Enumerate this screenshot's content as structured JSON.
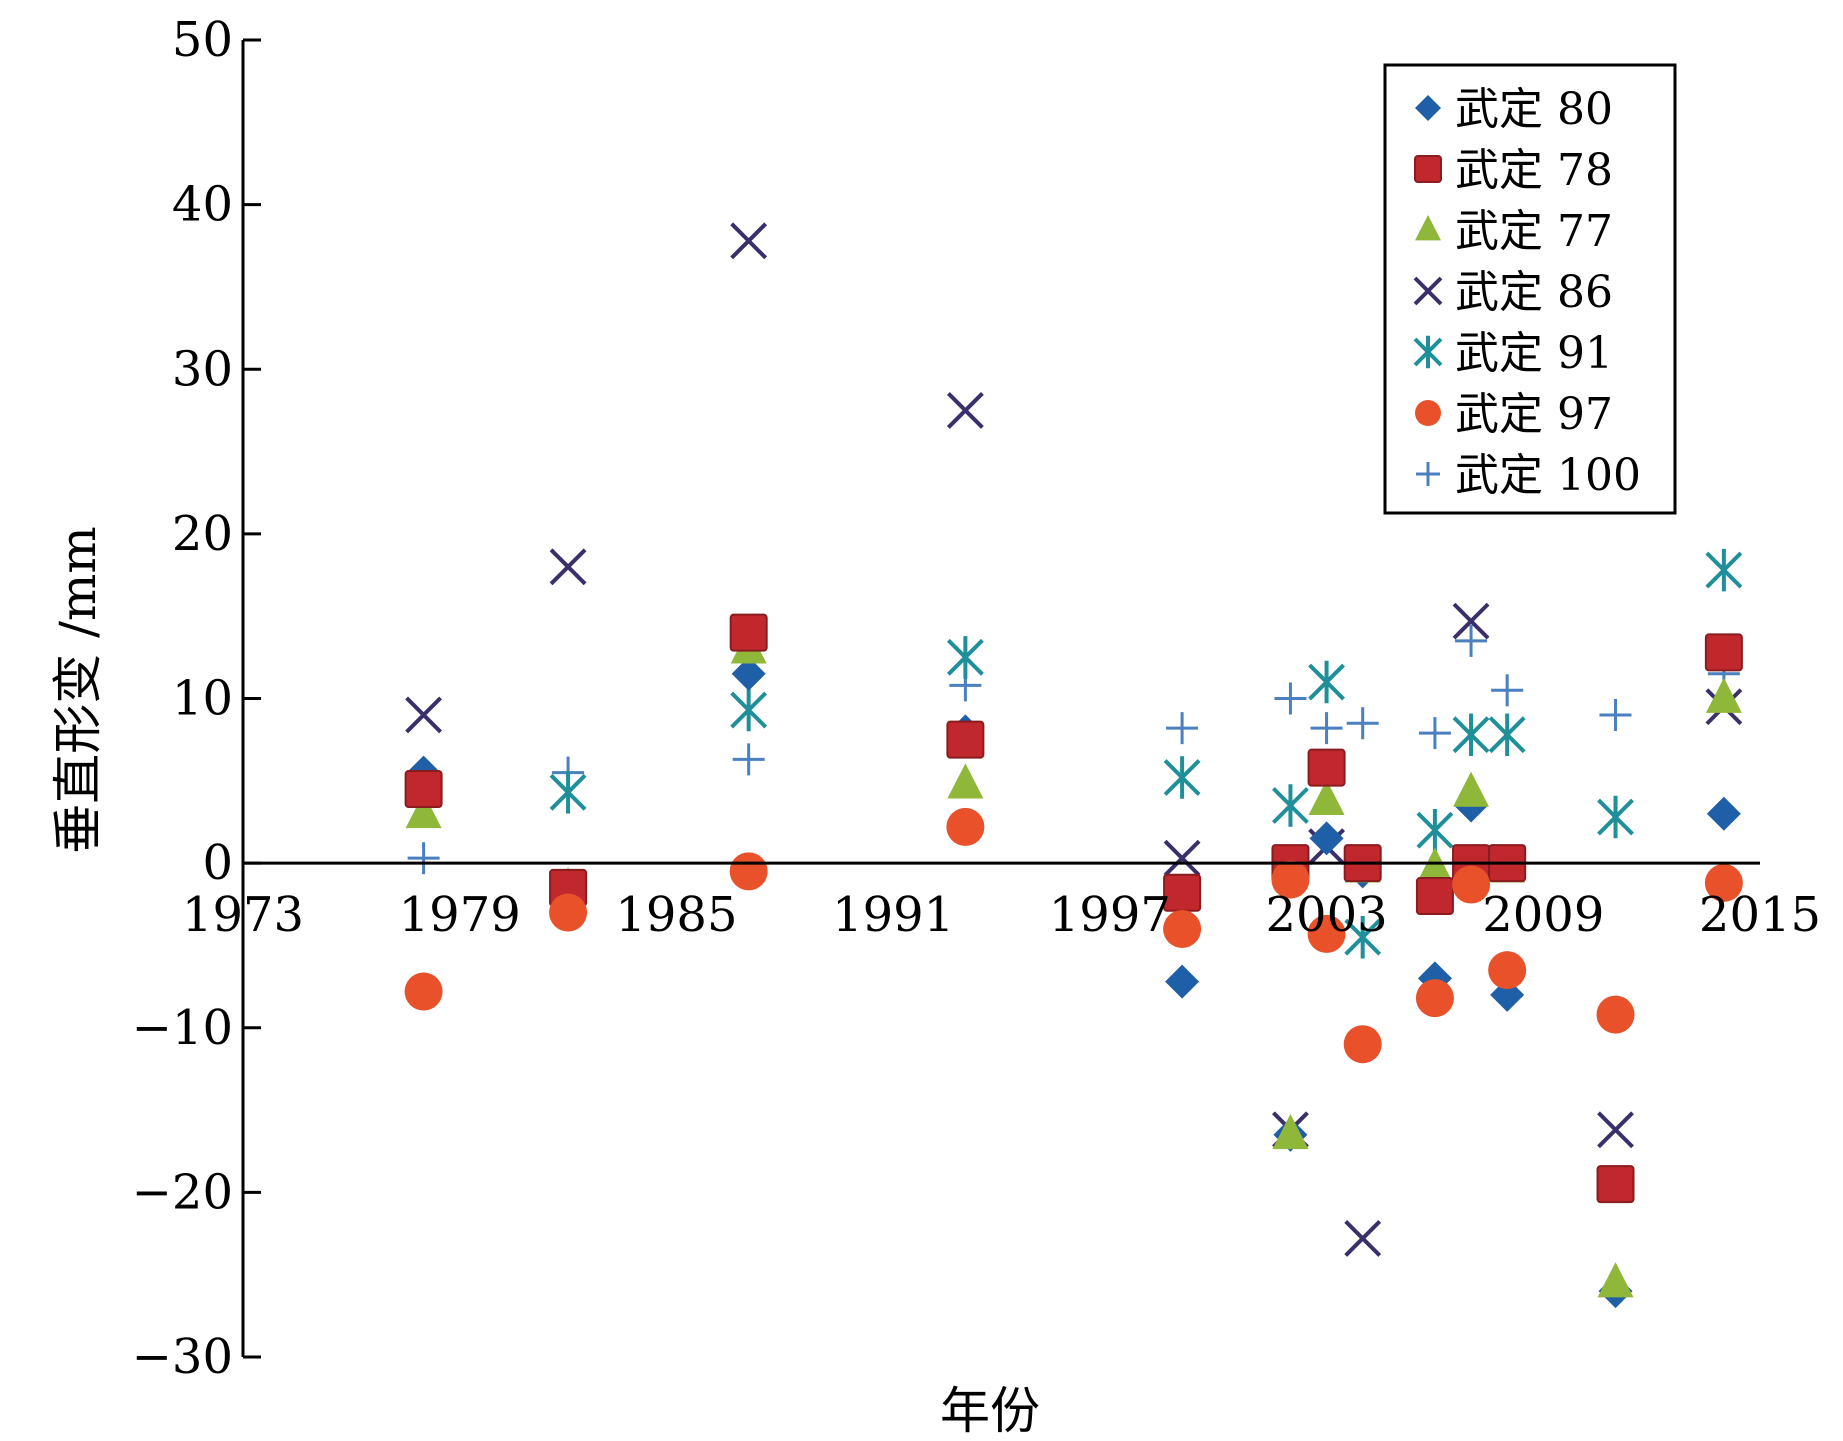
{
  "chart_data": {
    "type": "scatter",
    "title": "",
    "xlabel": "年份",
    "ylabel": "垂直形变 /mm",
    "xlim": [
      1973,
      2015
    ],
    "ylim": [
      -30,
      50
    ],
    "x_ticks": [
      1973,
      1979,
      1985,
      1991,
      1997,
      2003,
      2009,
      2015
    ],
    "y_ticks": [
      50,
      40,
      30,
      20,
      10,
      0,
      -10,
      -20,
      -30
    ],
    "x_tick_labels": [
      "1973",
      "1979",
      "1985",
      "1991",
      "1997",
      "2003",
      "2009",
      "2015"
    ],
    "y_tick_labels": [
      "50",
      "40",
      "30",
      "20",
      "10",
      "0",
      "−10",
      "−20",
      "−30"
    ],
    "grid": false,
    "legend_position": "top-right",
    "series": [
      {
        "name": "武定 80",
        "marker": "diamond",
        "color": "#1f5fa8",
        "points": [
          [
            1978,
            5.5
          ],
          [
            1982,
            -1.5
          ],
          [
            1987,
            11.5
          ],
          [
            1993,
            8.0
          ],
          [
            1999,
            -7.2
          ],
          [
            2002,
            -16.5
          ],
          [
            2003,
            1.5
          ],
          [
            2004,
            -0.5
          ],
          [
            2006,
            -7.0
          ],
          [
            2007,
            3.5
          ],
          [
            2008,
            -8.0
          ],
          [
            2011,
            -26.0
          ],
          [
            2014,
            3.0
          ]
        ]
      },
      {
        "name": "武定 78",
        "marker": "square",
        "color": "#c0282d",
        "points": [
          [
            1978,
            4.5
          ],
          [
            1982,
            -1.5
          ],
          [
            1987,
            14.0
          ],
          [
            1993,
            7.5
          ],
          [
            1999,
            -1.8
          ],
          [
            2002,
            0.0
          ],
          [
            2003,
            5.8
          ],
          [
            2004,
            0.0
          ],
          [
            2006,
            -2.0
          ],
          [
            2007,
            0.0
          ],
          [
            2008,
            0.0
          ],
          [
            2011,
            -19.5
          ],
          [
            2014,
            12.8
          ]
        ]
      },
      {
        "name": "武定 77",
        "marker": "triangle",
        "color": "#8fb83a",
        "points": [
          [
            1978,
            3.0
          ],
          [
            1982,
            -1.5
          ],
          [
            1987,
            13.0
          ],
          [
            1993,
            4.8
          ],
          [
            2002,
            -16.5
          ],
          [
            2003,
            3.8
          ],
          [
            2004,
            -0.3
          ],
          [
            2006,
            -0.3
          ],
          [
            2007,
            4.3
          ],
          [
            2008,
            -0.3
          ],
          [
            2011,
            -25.5
          ],
          [
            2014,
            10.0
          ]
        ]
      },
      {
        "name": "武定 86",
        "marker": "x",
        "color": "#3b2f6b",
        "points": [
          [
            1978,
            9.0
          ],
          [
            1982,
            18.0
          ],
          [
            1987,
            37.8
          ],
          [
            1993,
            27.5
          ],
          [
            1999,
            0.3
          ],
          [
            2002,
            -16.2
          ],
          [
            2003,
            1.0
          ],
          [
            2004,
            -22.8
          ],
          [
            2007,
            14.7
          ],
          [
            2011,
            -16.2
          ],
          [
            2014,
            9.5
          ]
        ]
      },
      {
        "name": "武定 91",
        "marker": "asterisk",
        "color": "#1f8f9a",
        "points": [
          [
            1978,
            4.5
          ],
          [
            1982,
            4.3
          ],
          [
            1987,
            9.3
          ],
          [
            1993,
            12.5
          ],
          [
            1999,
            5.2
          ],
          [
            2002,
            3.5
          ],
          [
            2003,
            11.0
          ],
          [
            2004,
            -4.5
          ],
          [
            2006,
            2.0
          ],
          [
            2007,
            7.8
          ],
          [
            2008,
            7.8
          ],
          [
            2011,
            2.8
          ],
          [
            2014,
            17.8
          ]
        ]
      },
      {
        "name": "武定 97",
        "marker": "circle",
        "color": "#e8512a",
        "points": [
          [
            1978,
            -7.8
          ],
          [
            1982,
            -3.0
          ],
          [
            1987,
            -0.5
          ],
          [
            1993,
            2.2
          ],
          [
            1999,
            -4.0
          ],
          [
            2002,
            -1.0
          ],
          [
            2003,
            -4.3
          ],
          [
            2004,
            -11.0
          ],
          [
            2006,
            -8.2
          ],
          [
            2007,
            -1.3
          ],
          [
            2008,
            -6.5
          ],
          [
            2011,
            -9.2
          ],
          [
            2014,
            -1.2
          ]
        ]
      },
      {
        "name": "武定 100",
        "marker": "plus",
        "color": "#4a7fc0",
        "points": [
          [
            1978,
            0.3
          ],
          [
            1982,
            5.5
          ],
          [
            1987,
            6.3
          ],
          [
            1993,
            10.8
          ],
          [
            1999,
            8.2
          ],
          [
            2002,
            10.0
          ],
          [
            2003,
            8.2
          ],
          [
            2004,
            8.5
          ],
          [
            2006,
            7.9
          ],
          [
            2007,
            13.5
          ],
          [
            2008,
            10.5
          ],
          [
            2011,
            9.0
          ],
          [
            2014,
            11.5
          ]
        ]
      }
    ]
  }
}
